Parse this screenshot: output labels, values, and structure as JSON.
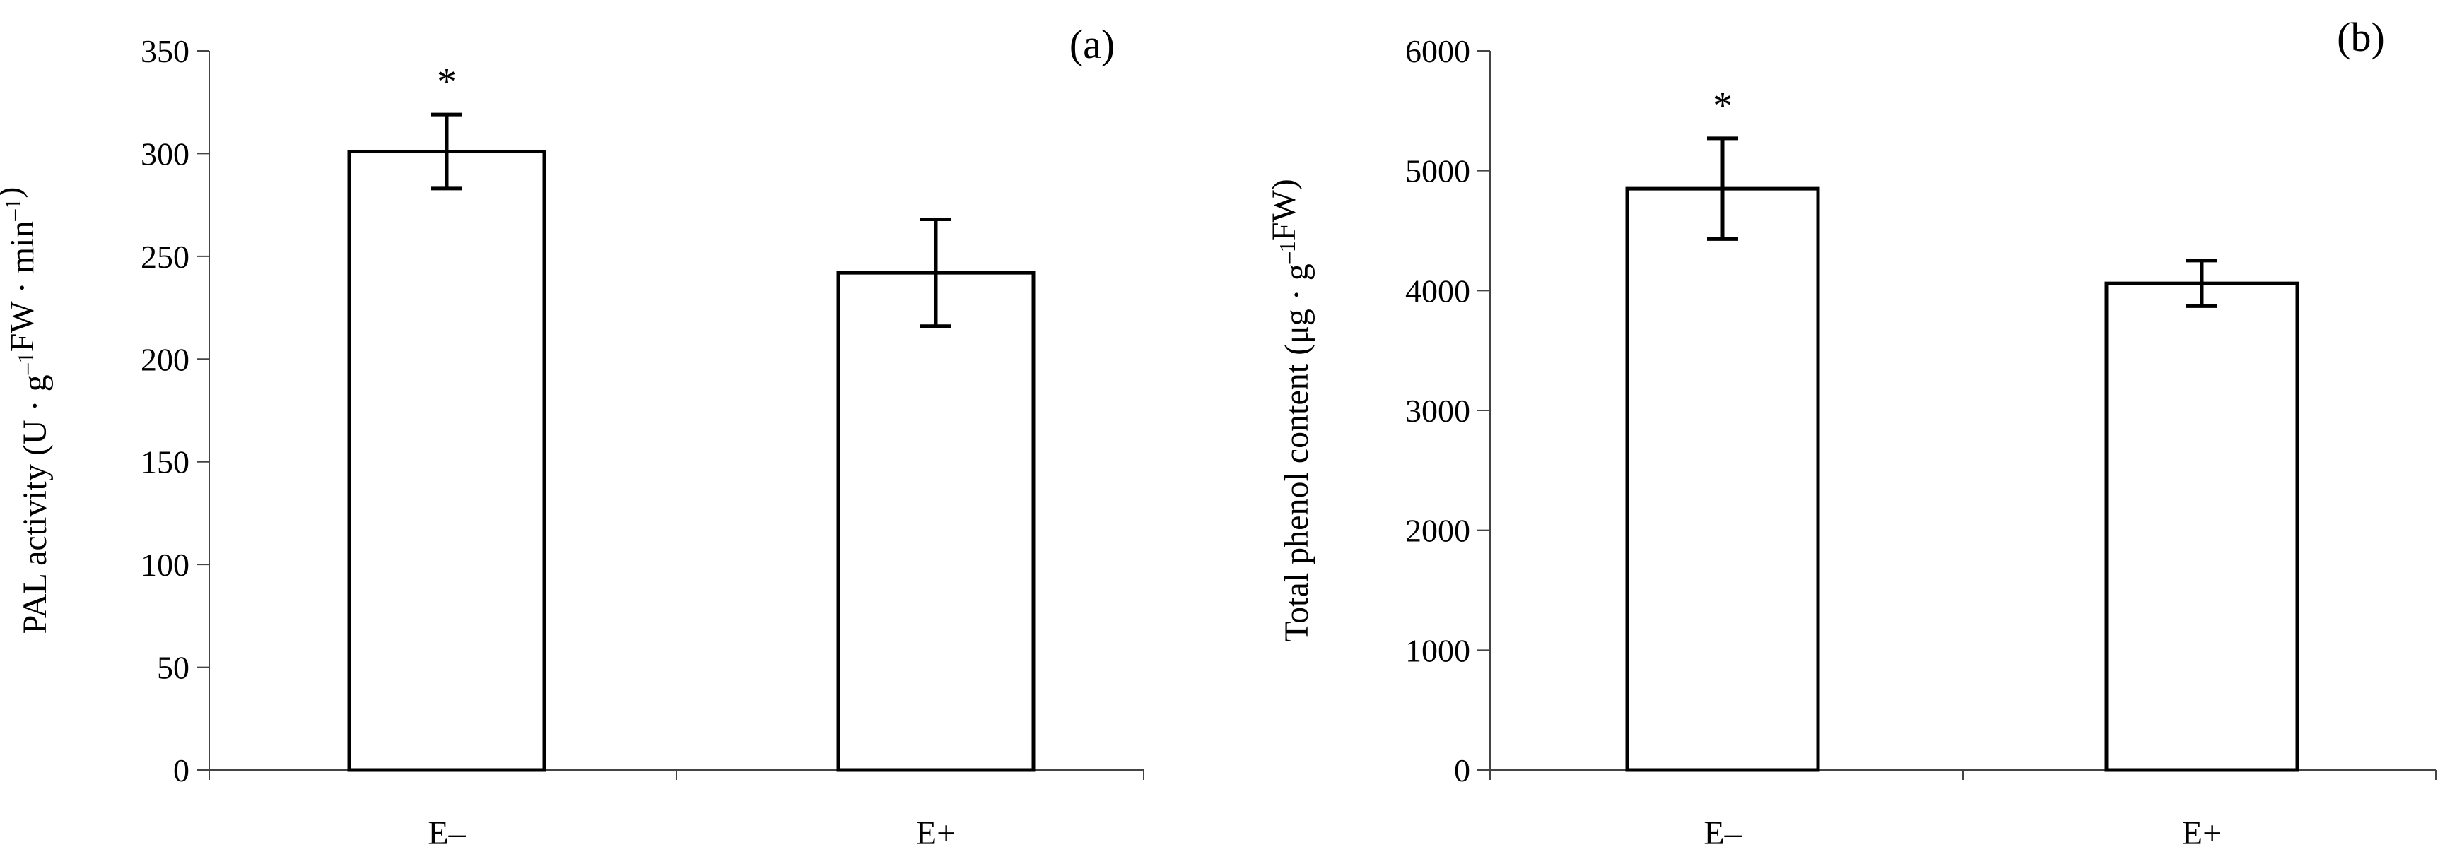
{
  "chart_data": [
    {
      "panel": "(a)",
      "type": "bar",
      "categories": [
        "E–",
        "E+"
      ],
      "values": [
        301,
        242
      ],
      "errors": [
        18,
        26
      ],
      "significance": [
        "*",
        ""
      ],
      "ylabel_parts": [
        {
          "t": "PAL activity (U · g"
        },
        {
          "t": "–1",
          "sup": true
        },
        {
          "t": "FW · min"
        },
        {
          "t": "–1",
          "sup": true
        },
        {
          "t": ")"
        }
      ],
      "ylim": [
        0,
        350
      ],
      "yticks": [
        "0",
        "50",
        "100",
        "150",
        "200",
        "250",
        "300",
        "350"
      ],
      "grid": false
    },
    {
      "panel": "(b)",
      "type": "bar",
      "categories": [
        "E–",
        "E+"
      ],
      "values": [
        4850,
        4060
      ],
      "errors": [
        420,
        190
      ],
      "significance": [
        "*",
        ""
      ],
      "ylabel_parts": [
        {
          "t": "Total phenol content (μg · g"
        },
        {
          "t": "–1",
          "sup": true
        },
        {
          "t": "FW)"
        }
      ],
      "ylim": [
        0,
        6000
      ],
      "yticks": [
        "0",
        "1000",
        "2000",
        "3000",
        "4000",
        "5000",
        "6000"
      ],
      "grid": false
    }
  ]
}
